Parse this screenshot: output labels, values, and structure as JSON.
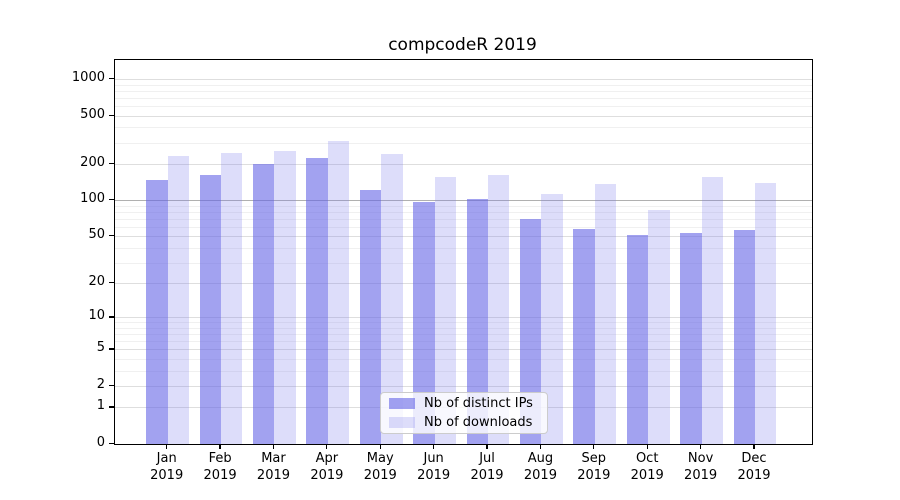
{
  "chart_data": {
    "type": "bar",
    "title": "compcodeR 2019",
    "categories": [
      {
        "month": "Jan",
        "year": "2019"
      },
      {
        "month": "Feb",
        "year": "2019"
      },
      {
        "month": "Mar",
        "year": "2019"
      },
      {
        "month": "Apr",
        "year": "2019"
      },
      {
        "month": "May",
        "year": "2019"
      },
      {
        "month": "Jun",
        "year": "2019"
      },
      {
        "month": "Jul",
        "year": "2019"
      },
      {
        "month": "Aug",
        "year": "2019"
      },
      {
        "month": "Sep",
        "year": "2019"
      },
      {
        "month": "Oct",
        "year": "2019"
      },
      {
        "month": "Nov",
        "year": "2019"
      },
      {
        "month": "Dec",
        "year": "2019"
      }
    ],
    "series": [
      {
        "name": "Nb of distinct IPs",
        "color": "rgba(100,100,230,0.6)",
        "values": [
          147,
          162,
          199,
          225,
          122,
          96,
          102,
          70,
          58,
          51,
          53,
          56
        ]
      },
      {
        "name": "Nb of downloads",
        "color": "rgba(120,120,235,0.25)",
        "values": [
          233,
          246,
          256,
          310,
          243,
          155,
          162,
          112,
          137,
          83,
          156,
          138
        ]
      }
    ],
    "yscale": "log1p",
    "ylim": [
      0,
      1434
    ],
    "yticks": [
      0,
      1,
      2,
      5,
      10,
      20,
      50,
      100,
      200,
      500,
      1000
    ],
    "ytick_labels": [
      "0",
      "1",
      "2",
      "5",
      "10",
      "20",
      "50",
      "100",
      "200",
      "500",
      "1000"
    ],
    "minor_gridlines": [
      3,
      4,
      6,
      7,
      8,
      9,
      30,
      40,
      60,
      70,
      80,
      90,
      300,
      400,
      600,
      700,
      800,
      900
    ],
    "emphasis_gridline": 100,
    "grid": true,
    "legend_position": "inside-bottom-center",
    "xlabel": "",
    "ylabel": ""
  }
}
